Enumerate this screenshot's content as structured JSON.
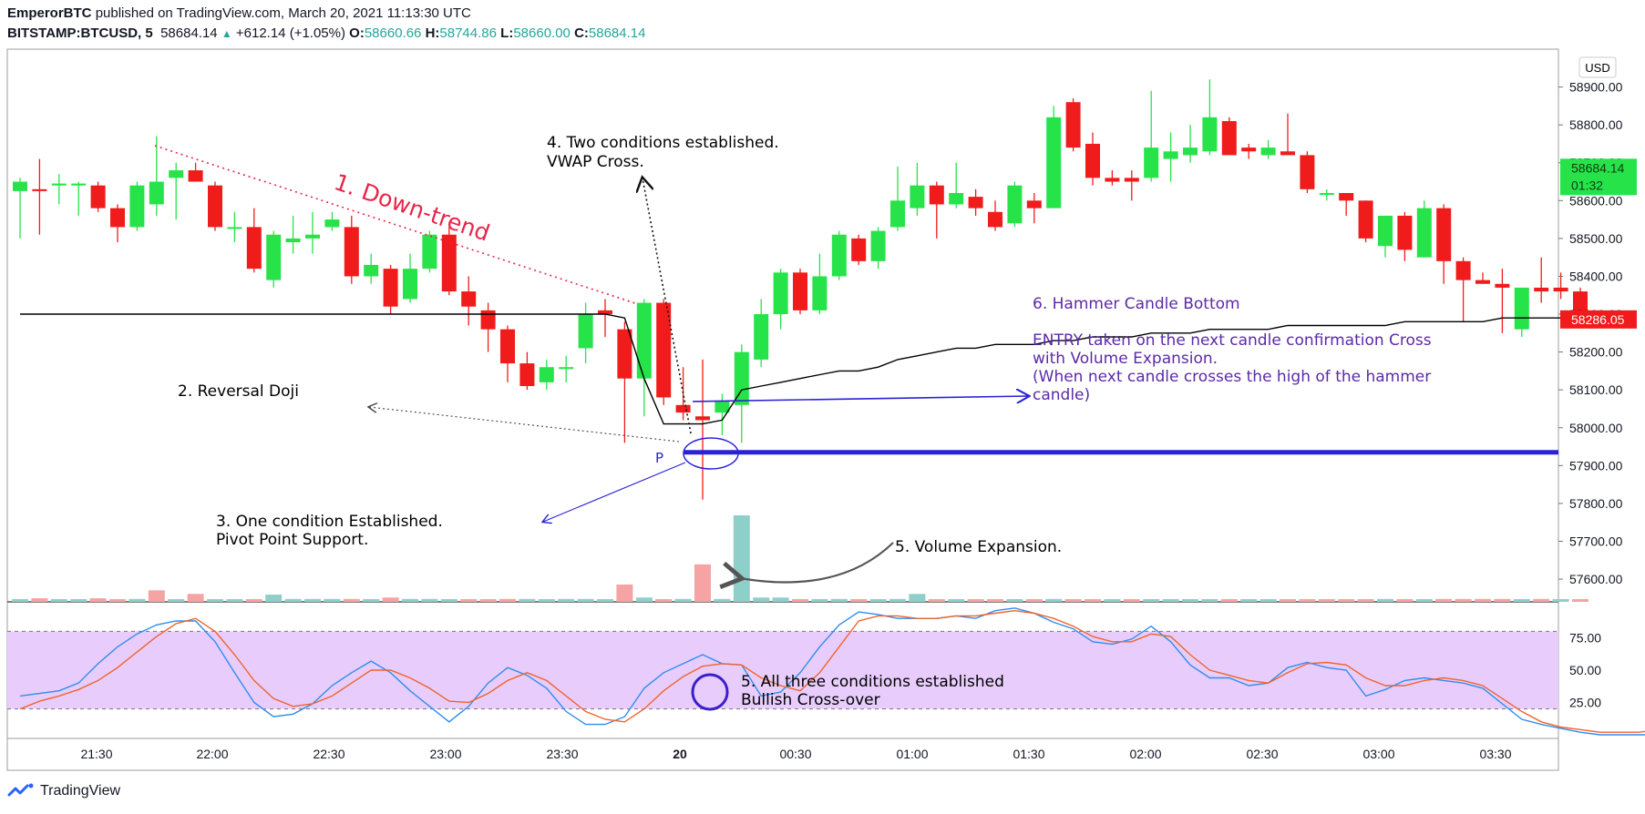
{
  "header": {
    "author": "EmperorBTC",
    "published": "published on TradingView.com, March 20, 2021 11:13:30 UTC",
    "symbol": "BITSTAMP:BTCUSD, 5",
    "last": "58684.14",
    "change": "+612.14 (+1.05%)",
    "o_label": "O:",
    "o": "58660.66",
    "h_label": "H:",
    "h": "58744.86",
    "l_label": "L:",
    "l": "58660.00",
    "c_label": "C:",
    "c": "58684.14"
  },
  "footer": {
    "brand": "TradingView",
    "logo_icon": "tradingview-logo-icon"
  },
  "colors": {
    "up": "#26e34a",
    "down": "#f01b1b",
    "vol_up": "#8fcfc9",
    "vol_down": "#f5a3a3",
    "band": "#e8cdfc",
    "k_line": "#2f8ded",
    "d_line": "#f0642c",
    "vwap": "#000000",
    "support": "#2a22d6",
    "annot_purple": "#5b2aa8",
    "downtrend": "#e8254a"
  },
  "chart_data": [
    {
      "type": "candlestick",
      "currency": "USD",
      "ylim": [
        57540,
        59000
      ],
      "y_ticks": [
        "58900.00",
        "58800.00",
        "58700.00",
        "58600.00",
        "58500.00",
        "58400.00",
        "58300.00",
        "58200.00",
        "58100.00",
        "58000.00",
        "57900.00",
        "57800.00",
        "57700.00",
        "57600.00"
      ],
      "x_ticks": [
        "21:30",
        "22:00",
        "22:30",
        "23:00",
        "23:30",
        "20",
        "00:30",
        "01:00",
        "01:30",
        "02:00",
        "02:30",
        "03:00",
        "03:30"
      ],
      "price_labels": {
        "current": "58684.14",
        "countdown": "01:32",
        "vwap": "58286.05"
      },
      "candles": [
        [
          58625,
          58650,
          58500,
          58660
        ],
        [
          58630,
          58625,
          58510,
          58710
        ],
        [
          58640,
          58645,
          58590,
          58670
        ],
        [
          58640,
          58645,
          58560,
          58650
        ],
        [
          58640,
          58580,
          58570,
          58650
        ],
        [
          58580,
          58530,
          58490,
          58590
        ],
        [
          58530,
          58640,
          58520,
          58650
        ],
        [
          58590,
          58650,
          58560,
          58770
        ],
        [
          58660,
          58680,
          58550,
          58700
        ],
        [
          58680,
          58650,
          58650,
          58700
        ],
        [
          58640,
          58530,
          58520,
          58650
        ],
        [
          58530,
          58530,
          58490,
          58570
        ],
        [
          58530,
          58420,
          58410,
          58580
        ],
        [
          58390,
          58510,
          58370,
          58520
        ],
        [
          58490,
          58500,
          58460,
          58560
        ],
        [
          58500,
          58510,
          58460,
          58570
        ],
        [
          58530,
          58550,
          58520,
          58570
        ],
        [
          58530,
          58400,
          58380,
          58560
        ],
        [
          58400,
          58430,
          58380,
          58460
        ],
        [
          58420,
          58320,
          58300,
          58430
        ],
        [
          58340,
          58420,
          58330,
          58460
        ],
        [
          58420,
          58510,
          58410,
          58520
        ],
        [
          58510,
          58360,
          58350,
          58530
        ],
        [
          58360,
          58320,
          58270,
          58400
        ],
        [
          58310,
          58260,
          58200,
          58330
        ],
        [
          58260,
          58170,
          58120,
          58270
        ],
        [
          58170,
          58110,
          58100,
          58200
        ],
        [
          58120,
          58160,
          58100,
          58180
        ],
        [
          58160,
          58160,
          58120,
          58190
        ],
        [
          58210,
          58300,
          58170,
          58330
        ],
        [
          58310,
          58300,
          58240,
          58340
        ],
        [
          58260,
          58130,
          57960,
          58280
        ],
        [
          58130,
          58330,
          58030,
          58340
        ],
        [
          58330,
          58080,
          58060,
          58340
        ],
        [
          58060,
          58040,
          58020,
          58160
        ],
        [
          58030,
          58020,
          57810,
          58180
        ],
        [
          58040,
          58070,
          57980,
          58090
        ],
        [
          58060,
          58200,
          57960,
          58220
        ],
        [
          58180,
          58300,
          58160,
          58340
        ],
        [
          58300,
          58410,
          58260,
          58420
        ],
        [
          58410,
          58310,
          58300,
          58420
        ],
        [
          58310,
          58400,
          58300,
          58460
        ],
        [
          58400,
          58510,
          58390,
          58520
        ],
        [
          58500,
          58440,
          58430,
          58510
        ],
        [
          58440,
          58520,
          58420,
          58530
        ],
        [
          58530,
          58600,
          58520,
          58690
        ],
        [
          58580,
          58640,
          58560,
          58700
        ],
        [
          58640,
          58590,
          58500,
          58650
        ],
        [
          58590,
          58620,
          58580,
          58700
        ],
        [
          58610,
          58580,
          58560,
          58630
        ],
        [
          58570,
          58530,
          58520,
          58600
        ],
        [
          58540,
          58640,
          58530,
          58650
        ],
        [
          58600,
          58580,
          58540,
          58620
        ],
        [
          58580,
          58820,
          58580,
          58850
        ],
        [
          58860,
          58740,
          58730,
          58870
        ],
        [
          58750,
          58660,
          58640,
          58780
        ],
        [
          58660,
          58650,
          58640,
          58680
        ],
        [
          58660,
          58650,
          58600,
          58680
        ],
        [
          58660,
          58740,
          58650,
          58890
        ],
        [
          58710,
          58730,
          58650,
          58780
        ],
        [
          58720,
          58740,
          58700,
          58800
        ],
        [
          58730,
          58820,
          58720,
          58920
        ],
        [
          58810,
          58720,
          58720,
          58820
        ],
        [
          58740,
          58730,
          58710,
          58750
        ],
        [
          58720,
          58740,
          58710,
          58760
        ],
        [
          58730,
          58720,
          58720,
          58830
        ],
        [
          58720,
          58630,
          58620,
          58730
        ],
        [
          58620,
          58620,
          58600,
          58630
        ],
        [
          58620,
          58600,
          58560,
          58620
        ],
        [
          58600,
          58500,
          58490,
          58600
        ],
        [
          58480,
          58560,
          58450,
          58560
        ],
        [
          58560,
          58470,
          58440,
          58570
        ],
        [
          58450,
          58580,
          58450,
          58600
        ],
        [
          58580,
          58440,
          58380,
          58590
        ],
        [
          58440,
          58390,
          58280,
          58450
        ],
        [
          58390,
          58380,
          58380,
          58410
        ],
        [
          58380,
          58370,
          58250,
          58420
        ],
        [
          58260,
          58370,
          58240,
          58370
        ],
        [
          58370,
          58360,
          58330,
          58450
        ],
        [
          58370,
          58360,
          58340,
          58410
        ],
        [
          58360,
          58300,
          58300,
          58370
        ]
      ],
      "volumes": [
        [
          0.15,
          1
        ],
        [
          0.25,
          0
        ],
        [
          0.15,
          1
        ],
        [
          0.15,
          1
        ],
        [
          0.25,
          0
        ],
        [
          0.15,
          0
        ],
        [
          0.2,
          1
        ],
        [
          0.8,
          0
        ],
        [
          0.15,
          1
        ],
        [
          0.55,
          0
        ],
        [
          0.15,
          1
        ],
        [
          0.15,
          1
        ],
        [
          0.15,
          0
        ],
        [
          0.5,
          1
        ],
        [
          0.2,
          1
        ],
        [
          0.2,
          1
        ],
        [
          0.2,
          1
        ],
        [
          0.2,
          0
        ],
        [
          0.15,
          1
        ],
        [
          0.3,
          0
        ],
        [
          0.2,
          1
        ],
        [
          0.2,
          1
        ],
        [
          0.15,
          1
        ],
        [
          0.15,
          0
        ],
        [
          0.15,
          0
        ],
        [
          0.2,
          0
        ],
        [
          0.2,
          1
        ],
        [
          0.15,
          1
        ],
        [
          0.2,
          1
        ],
        [
          0.2,
          1
        ],
        [
          0.15,
          1
        ],
        [
          1.2,
          0
        ],
        [
          0.3,
          1
        ],
        [
          0.15,
          0
        ],
        [
          0.2,
          1
        ],
        [
          2.6,
          0
        ],
        [
          0.2,
          1
        ],
        [
          6.0,
          1
        ],
        [
          0.3,
          1
        ],
        [
          0.3,
          1
        ],
        [
          0.15,
          0
        ],
        [
          0.15,
          1
        ],
        [
          0.2,
          1
        ],
        [
          0.15,
          0
        ],
        [
          0.15,
          1
        ],
        [
          0.2,
          1
        ],
        [
          0.55,
          1
        ],
        [
          0.15,
          0
        ],
        [
          0.15,
          1
        ],
        [
          0.15,
          0
        ],
        [
          0.15,
          0
        ],
        [
          0.15,
          1
        ],
        [
          0.15,
          0
        ],
        [
          0.2,
          1
        ],
        [
          0.15,
          0
        ],
        [
          0.15,
          0
        ],
        [
          0.15,
          1
        ],
        [
          0.15,
          0
        ],
        [
          0.15,
          1
        ],
        [
          0.15,
          1
        ],
        [
          0.15,
          1
        ],
        [
          0.15,
          1
        ],
        [
          0.15,
          0
        ],
        [
          0.15,
          1
        ],
        [
          0.15,
          1
        ],
        [
          0.15,
          0
        ],
        [
          0.15,
          0
        ],
        [
          0.15,
          0
        ],
        [
          0.15,
          0
        ],
        [
          0.15,
          0
        ],
        [
          0.2,
          1
        ],
        [
          0.15,
          0
        ],
        [
          0.15,
          1
        ],
        [
          0.2,
          0
        ],
        [
          0.2,
          0
        ],
        [
          0.2,
          0
        ],
        [
          0.2,
          0
        ],
        [
          0.15,
          1
        ],
        [
          0.2,
          0
        ],
        [
          0.15,
          1
        ],
        [
          0.15,
          0
        ]
      ],
      "vwap": [
        58300,
        58300,
        58300,
        58300,
        58300,
        58300,
        58300,
        58300,
        58300,
        58300,
        58300,
        58300,
        58300,
        58300,
        58300,
        58300,
        58300,
        58300,
        58300,
        58300,
        58300,
        58300,
        58300,
        58300,
        58300,
        58300,
        58300,
        58300,
        58300,
        58300,
        58300,
        58290,
        58130,
        58010,
        58010,
        58010,
        58020,
        58100,
        58110,
        58120,
        58130,
        58140,
        58150,
        58150,
        58160,
        58180,
        58190,
        58200,
        58210,
        58210,
        58220,
        58220,
        58220,
        58230,
        58230,
        58240,
        58240,
        58240,
        58250,
        58250,
        58250,
        58260,
        58260,
        58260,
        58260,
        58270,
        58270,
        58270,
        58270,
        58270,
        58270,
        58280,
        58280,
        58280,
        58280,
        58280,
        58290,
        58290,
        58290,
        58290,
        58290
      ]
    },
    {
      "type": "line",
      "yticks": [
        "75.00",
        "50.00",
        "25.00"
      ],
      "band": [
        20,
        80
      ],
      "ylim": [
        0,
        100
      ],
      "series": [
        {
          "color_key": "k_line",
          "values": [
            30,
            32,
            34,
            40,
            55,
            68,
            78,
            85,
            88,
            88,
            72,
            48,
            25,
            14,
            16,
            24,
            38,
            48,
            57,
            48,
            34,
            22,
            10,
            22,
            40,
            52,
            46,
            36,
            18,
            8,
            8,
            14,
            36,
            48,
            55,
            62,
            55,
            54,
            30,
            33,
            48,
            68,
            85,
            95,
            93,
            90,
            90,
            90,
            92,
            90,
            96,
            98,
            94,
            87,
            82,
            72,
            70,
            74,
            84,
            72,
            54,
            44,
            44,
            38,
            40,
            52,
            56,
            52,
            50,
            30,
            35,
            42,
            44,
            42,
            40,
            36,
            24,
            12,
            8,
            5,
            2,
            0,
            0,
            0,
            0,
            4,
            10,
            12,
            14,
            16,
            12
          ]
        },
        {
          "color_key": "d_line",
          "values": [
            20,
            26,
            30,
            35,
            42,
            52,
            64,
            76,
            86,
            90,
            80,
            62,
            42,
            28,
            22,
            24,
            30,
            40,
            50,
            50,
            44,
            36,
            26,
            25,
            32,
            42,
            48,
            42,
            30,
            18,
            12,
            10,
            20,
            34,
            45,
            53,
            55,
            54,
            44,
            38,
            34,
            48,
            68,
            88,
            92,
            92,
            90,
            90,
            92,
            92,
            94,
            96,
            94,
            90,
            84,
            76,
            72,
            72,
            78,
            76,
            62,
            50,
            46,
            42,
            40,
            48,
            55,
            56,
            54,
            44,
            38,
            38,
            42,
            44,
            42,
            38,
            28,
            18,
            10,
            6,
            4,
            2,
            2,
            2,
            4,
            6,
            10,
            14,
            14,
            14,
            12
          ]
        }
      ]
    }
  ],
  "annotations": {
    "a1": "1. Down-trend",
    "a2": "2. Reversal Doji",
    "a3_line1": "3. One condition Established.",
    "a3_line2": "Pivot Point Support.",
    "a4_line1": "4. Two conditions established.",
    "a4_line2": "VWAP Cross.",
    "a5_vol": "5. Volume Expansion.",
    "a5_osc_line1": "5. All three conditions established",
    "a5_osc_line2": "Bullish Cross-over",
    "a6_title": "6. Hammer Candle Bottom",
    "a6_l1": "ENTRY taken on the next candle confirmation Cross",
    "a6_l2": "with Volume Expansion.",
    "a6_l3": "(When next candle crosses the high of the hammer",
    "a6_l4": "candle)",
    "pivot_label": "P"
  }
}
